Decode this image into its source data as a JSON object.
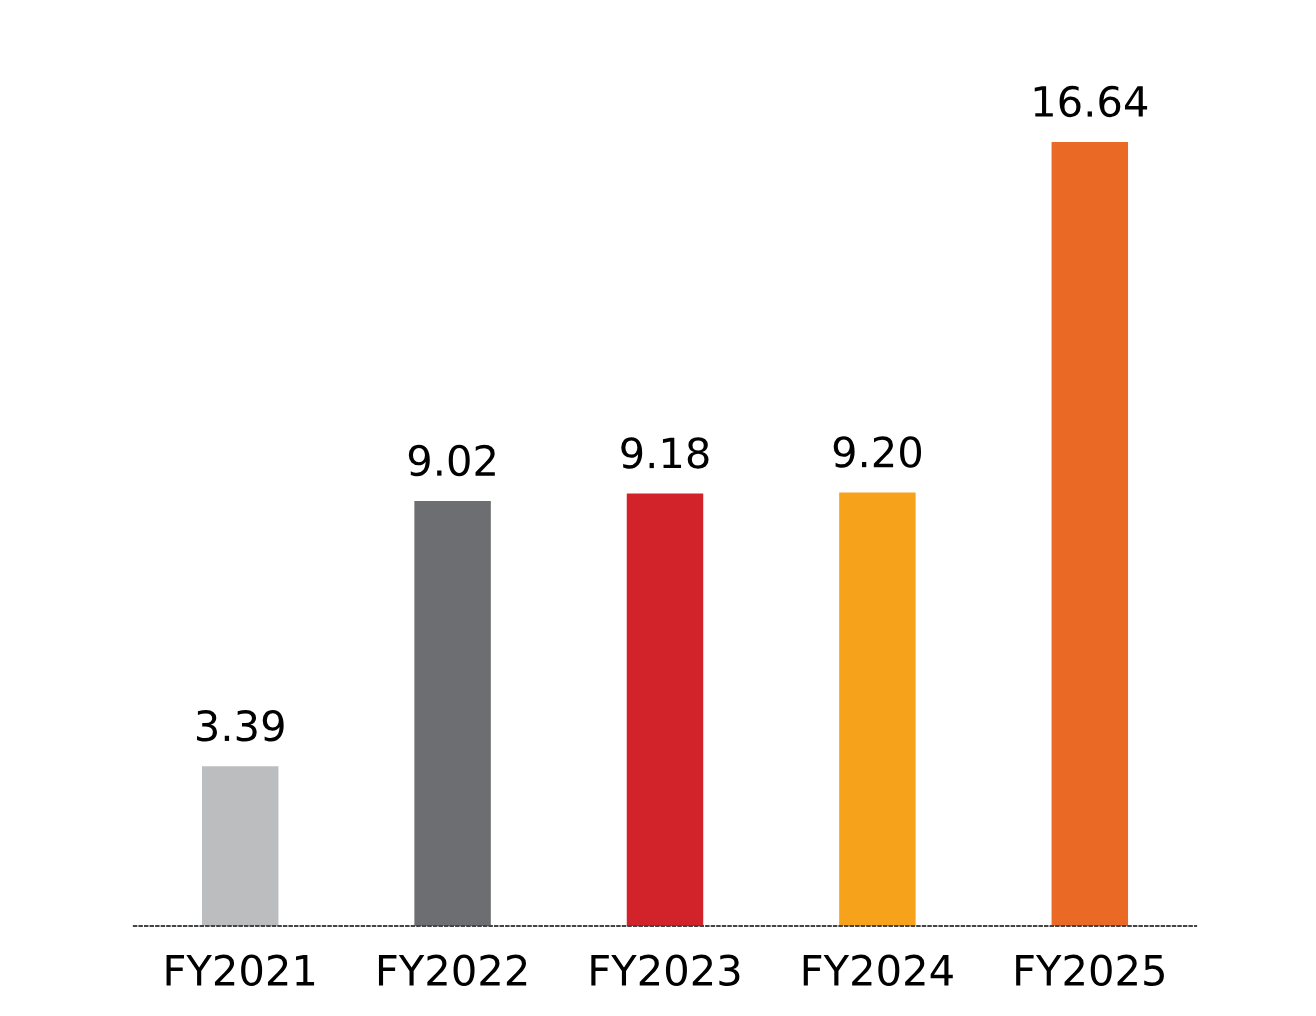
{
  "chart_data": {
    "type": "bar",
    "categories": [
      "FY2021",
      "FY2022",
      "FY2023",
      "FY2024",
      "FY2025"
    ],
    "values": [
      3.39,
      9.02,
      9.18,
      9.2,
      16.64
    ],
    "colors": [
      "#bcbdbf",
      "#6d6e71",
      "#d2232a",
      "#f7a21b",
      "#ea6a25"
    ],
    "value_labels": [
      "3.39",
      "9.02",
      "9.18",
      "9.20",
      "16.64"
    ],
    "grid": false,
    "legend": false
  }
}
